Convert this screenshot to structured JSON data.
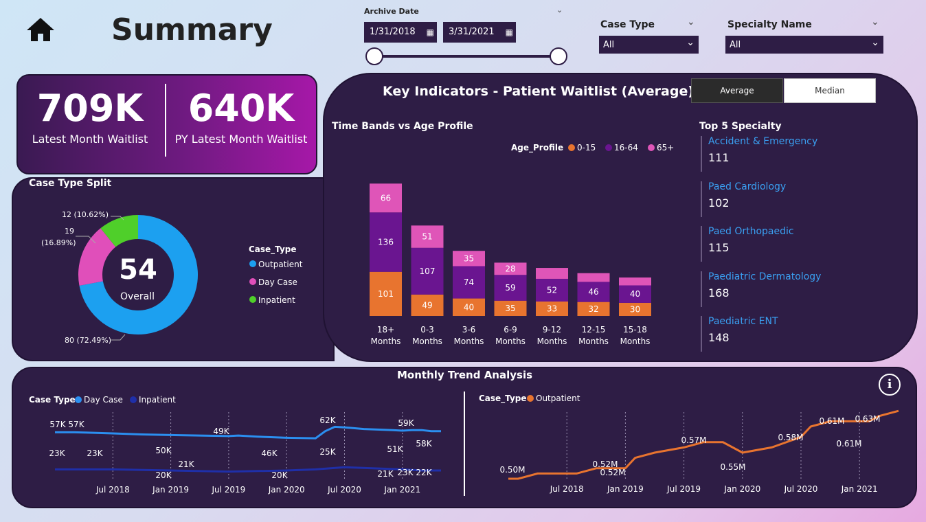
{
  "header": {
    "title": "Summary",
    "home_icon": "home-icon"
  },
  "filters": {
    "archive_label": "Archive Date",
    "start_date": "1/31/2018",
    "end_date": "3/31/2021",
    "case_type_label": "Case Type",
    "case_type_value": "All",
    "specialty_label": "Specialty Name",
    "specialty_value": "All"
  },
  "kpis": {
    "latest_value": "709K",
    "latest_label": "Latest Month Waitlist",
    "py_value": "640K",
    "py_label": "PY Latest Month Waitlist"
  },
  "case_split": {
    "title": "Case Type Split",
    "center_value": "54",
    "center_label": "Overall",
    "legend_title": "Case_Type",
    "labels": {
      "inpatient": "12 (10.62%)",
      "daycase_a": "19",
      "daycase_b": "(16.89%)",
      "outpatient": "80 (72.49%)"
    }
  },
  "key_indicators": {
    "title": "Key Indicators - Patient Waitlist (Average)",
    "toggle_average": "Average",
    "toggle_median": "Median",
    "bands_title": "Time Bands vs Age Profile",
    "top5_title": "Top 5 Specialty"
  },
  "top5": [
    {
      "name": "Accident & Emergency",
      "value": "111"
    },
    {
      "name": "Paed Cardiology",
      "value": "102"
    },
    {
      "name": "Paed Orthopaedic",
      "value": "115"
    },
    {
      "name": "Paediatric Dermatology",
      "value": "168"
    },
    {
      "name": "Paediatric ENT",
      "value": "148"
    }
  ],
  "trend": {
    "title": "Monthly Trend Analysis",
    "left_legend_title": "Case Type",
    "right_legend_title": "Case_Type"
  },
  "colors": {
    "panel": "#2e1d45",
    "age_0_15": "#e8742f",
    "age_16_64": "#6a1590",
    "age_65plus": "#df55b8",
    "outpatient": "#1ca0f0",
    "daycase": "#e04fba",
    "inpatient": "#4fcf2a",
    "trend_daycase": "#2b8ff0",
    "trend_inpatient": "#1f2fa8",
    "trend_outpatient": "#e8742f",
    "spec_name": "#3aa0f2"
  },
  "chart_data": [
    {
      "type": "pie",
      "title": "Case Type Split",
      "legend_title": "Case_Type",
      "categories": [
        "Outpatient",
        "Day Case",
        "Inpatient"
      ],
      "values": [
        80,
        19,
        12
      ],
      "percent": [
        72.49,
        16.89,
        10.62
      ],
      "center": "54",
      "center_label": "Overall",
      "legend": "right"
    },
    {
      "type": "bar",
      "title": "Time Bands vs Age Profile",
      "legend_title": "Age_Profile",
      "stacked": true,
      "categories": [
        "18+ Months",
        "0-3 Months",
        "3-6 Months",
        "6-9 Months",
        "9-12 Months",
        "12-15 Months",
        "15-18 Months"
      ],
      "series": [
        {
          "name": "0-15",
          "values": [
            101,
            49,
            40,
            35,
            33,
            32,
            30
          ]
        },
        {
          "name": "16-64",
          "values": [
            136,
            107,
            74,
            59,
            52,
            46,
            40
          ]
        },
        {
          "name": "65+",
          "values": [
            66,
            51,
            35,
            28,
            25,
            20,
            18
          ]
        }
      ],
      "data_labels": [
        [
          "101",
          "49",
          "40",
          "35",
          "33",
          "32",
          "30"
        ],
        [
          "136",
          "107",
          "74",
          "59",
          "52",
          "46",
          "40"
        ],
        [
          "66",
          "51",
          "35",
          "28",
          "",
          "",
          ""
        ]
      ],
      "legend": "top"
    },
    {
      "type": "line",
      "legend_title": "Case Type",
      "x_ticks": [
        "Jul 2018",
        "Jan 2019",
        "Jul 2019",
        "Jan 2020",
        "Jul 2020",
        "Jan 2021"
      ],
      "series": [
        {
          "name": "Day Case",
          "x": [
            "2018-01",
            "2018-02",
            "2018-03",
            "2018-05",
            "2018-07",
            "2018-10",
            "2019-01",
            "2019-04",
            "2019-07",
            "2019-08",
            "2019-10",
            "2020-01",
            "2020-04",
            "2020-05",
            "2020-06",
            "2020-07",
            "2020-09",
            "2020-12",
            "2021-01",
            "2021-02",
            "2021-03",
            "2021-04",
            "2021-05"
          ],
          "values": [
            57,
            57,
            57,
            56.5,
            56,
            55,
            54.5,
            54,
            53.5,
            54,
            53,
            52,
            51.5,
            58,
            62,
            61.5,
            60,
            59,
            58.5,
            59,
            59,
            58,
            58
          ]
        },
        {
          "name": "Inpatient",
          "x": [
            "2018-01",
            "2018-07",
            "2019-01",
            "2019-07",
            "2020-01",
            "2020-04",
            "2020-07",
            "2021-01",
            "2021-03",
            "2021-05"
          ],
          "values": [
            23,
            23,
            22,
            21,
            22,
            23,
            25,
            23,
            22,
            22
          ]
        }
      ],
      "data_labels": [
        "57K",
        "57K",
        "49K",
        "46K",
        "62K",
        "59K",
        "51K",
        "58K",
        "23K",
        "23K",
        "50K",
        "20K",
        "21K",
        "20K",
        "25K",
        "21K",
        "23K",
        "22K"
      ]
    },
    {
      "type": "line",
      "legend_title": "Case_Type",
      "x_ticks": [
        "Jul 2018",
        "Jan 2019",
        "Jul 2019",
        "Jan 2020",
        "Jul 2020",
        "Jan 2021"
      ],
      "series": [
        {
          "name": "Outpatient",
          "x": [
            "2018-01",
            "2018-02",
            "2018-04",
            "2018-06",
            "2018-08",
            "2018-10",
            "2019-01",
            "2019-02",
            "2019-04",
            "2019-07",
            "2019-09",
            "2019-11",
            "2020-01",
            "2020-04",
            "2020-07",
            "2020-08",
            "2020-10",
            "2020-12",
            "2021-02",
            "2021-03",
            "2021-05"
          ],
          "values": [
            0.5,
            0.5,
            0.51,
            0.51,
            0.51,
            0.52,
            0.52,
            0.54,
            0.55,
            0.56,
            0.57,
            0.57,
            0.55,
            0.56,
            0.58,
            0.6,
            0.61,
            0.61,
            0.61,
            0.62,
            0.63
          ]
        }
      ],
      "data_labels": [
        "0.50M",
        "0.52M",
        "0.52M",
        "0.57M",
        "0.55M",
        "0.58M",
        "0.61M",
        "0.61M",
        "0.63M"
      ]
    }
  ]
}
